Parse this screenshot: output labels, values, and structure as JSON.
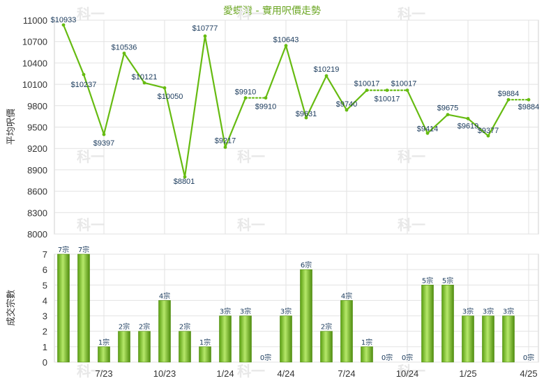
{
  "chart_data": [
    {
      "type": "line",
      "title": "愛蝶灣 - 實用呎價走勢",
      "ylabel": "平均呎價",
      "ylim": [
        8000,
        11000
      ],
      "yticks": [
        8000,
        8300,
        8600,
        8900,
        9200,
        9500,
        9800,
        10100,
        10400,
        10700,
        11000
      ],
      "grid": true,
      "series": [
        {
          "values": [
            10933,
            10237,
            9397,
            10536,
            10121,
            10050,
            8801,
            10777,
            9217,
            9910,
            9910,
            10643,
            9631,
            10219,
            9740,
            10017,
            10017,
            10017,
            9414,
            9675,
            9619,
            9377,
            9884,
            9884
          ],
          "labels": [
            "$10933",
            "$10237",
            "$9397",
            "$10536",
            "$10121",
            "$10050",
            "$8801",
            "$10777",
            "$9217",
            "$9910",
            "$9910",
            "$10643",
            "$9631",
            "$10219",
            "$9740",
            "$10017",
            "$10017",
            "$10017",
            "$9414",
            "$9675",
            "$9619",
            "$9377",
            "$9884",
            "$9884"
          ],
          "carried_forward": [
            false,
            false,
            false,
            false,
            false,
            false,
            false,
            false,
            false,
            false,
            true,
            false,
            false,
            false,
            false,
            false,
            true,
            true,
            false,
            false,
            false,
            false,
            false,
            true
          ]
        }
      ],
      "color": "#66bb11"
    },
    {
      "type": "bar",
      "ylabel": "成交宗數",
      "ylim": [
        0,
        7
      ],
      "yticks": [
        0,
        1,
        2,
        3,
        4,
        5,
        6,
        7
      ],
      "grid": true,
      "categories": [
        "",
        "",
        "7/23",
        "",
        "",
        "10/23",
        "",
        "",
        "1/24",
        "",
        "",
        "4/24",
        "",
        "",
        "7/24",
        "",
        "",
        "10/24",
        "",
        "",
        "1/25",
        "",
        "",
        "4/25"
      ],
      "values": [
        7,
        7,
        1,
        2,
        2,
        4,
        2,
        1,
        3,
        3,
        0,
        3,
        6,
        2,
        4,
        1,
        0,
        0,
        5,
        5,
        3,
        3,
        3,
        0
      ],
      "labels": [
        "7宗",
        "7宗",
        "1宗",
        "2宗",
        "2宗",
        "4宗",
        "2宗",
        "1宗",
        "3宗",
        "3宗",
        "0宗",
        "3宗",
        "6宗",
        "2宗",
        "4宗",
        "1宗",
        "0宗",
        "0宗",
        "5宗",
        "5宗",
        "3宗",
        "3宗",
        "3宗",
        "0宗"
      ],
      "color": "#7cc41e"
    }
  ],
  "watermark": "科一"
}
